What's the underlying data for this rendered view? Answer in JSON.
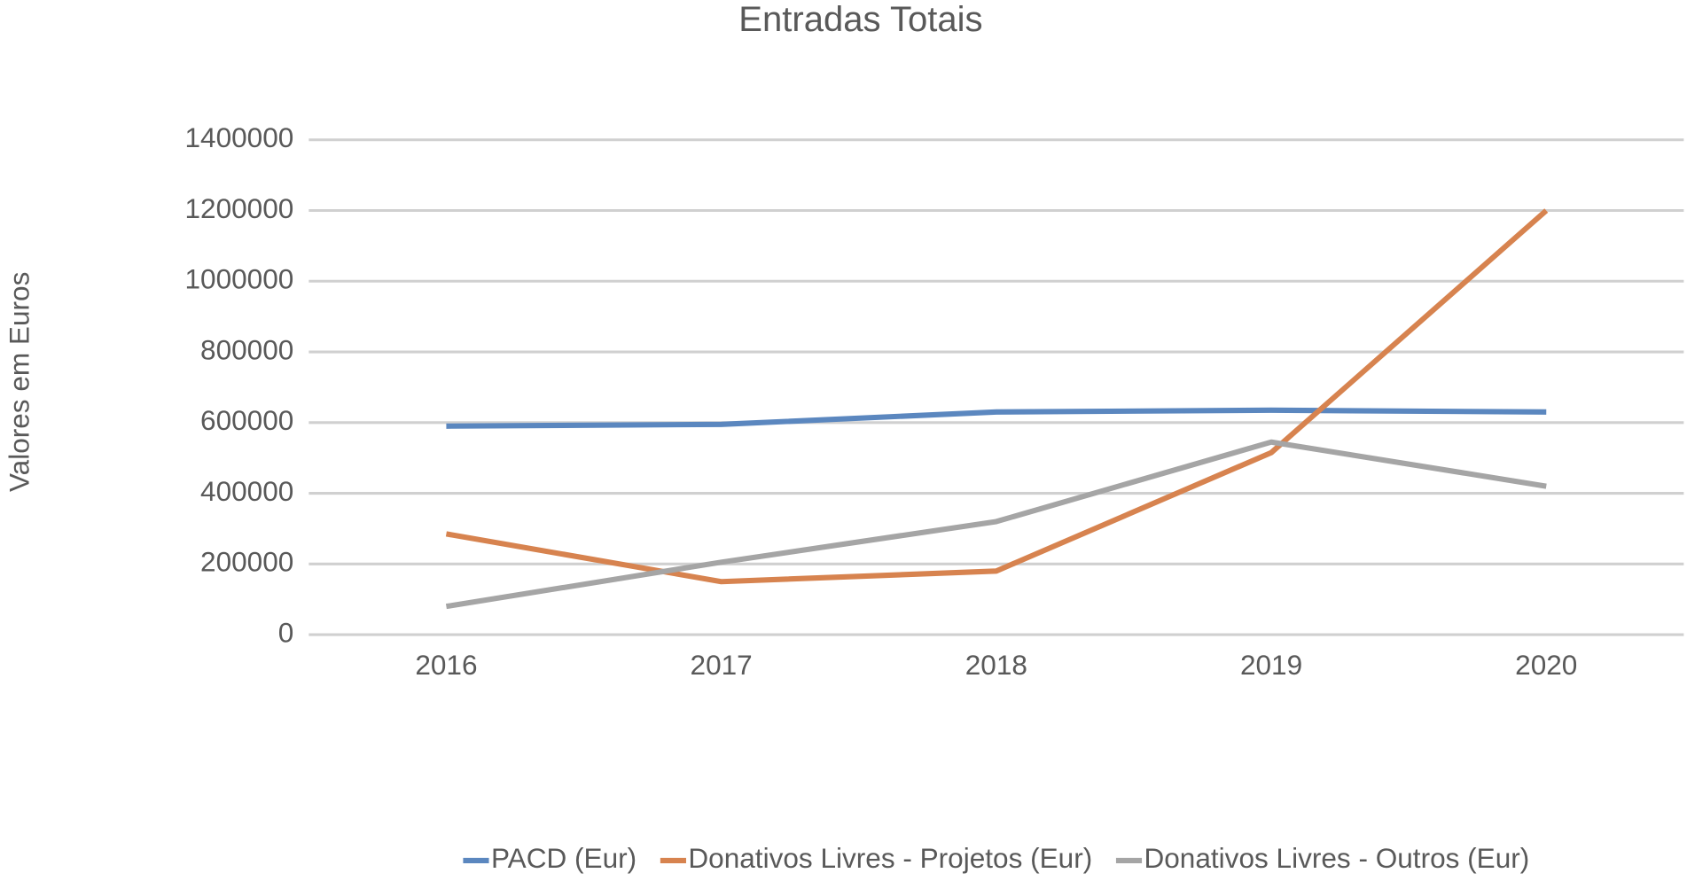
{
  "chart_data": {
    "type": "line",
    "title": "Entradas Totais",
    "y_label": "Valores em Euros",
    "categories": [
      "2016",
      "2017",
      "2018",
      "2019",
      "2020"
    ],
    "series": [
      {
        "name": "PACD (Eur)",
        "color": "#5b87bf",
        "values": [
          590000,
          595000,
          630000,
          635000,
          630000
        ]
      },
      {
        "name": "Donativos Livres - Projetos (Eur)",
        "color": "#d7834f",
        "values": [
          285000,
          150000,
          180000,
          515000,
          1200000
        ]
      },
      {
        "name": "Donativos Livres - Outros (Eur)",
        "color": "#a5a5a5",
        "values": [
          80000,
          205000,
          320000,
          545000,
          420000
        ]
      }
    ],
    "ylim": [
      0,
      1400000
    ],
    "yticks": [
      0,
      200000,
      400000,
      600000,
      800000,
      1000000,
      1200000,
      1400000
    ],
    "grid": true,
    "legend": "bottom"
  }
}
